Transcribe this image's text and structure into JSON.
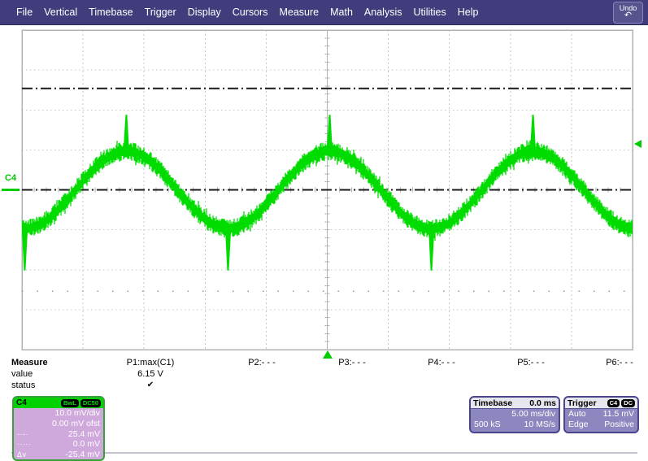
{
  "menu": {
    "items": [
      "File",
      "Vertical",
      "Timebase",
      "Trigger",
      "Display",
      "Cursors",
      "Measure",
      "Math",
      "Analysis",
      "Utilities",
      "Help"
    ],
    "undo": {
      "label": "Undo",
      "icon_glyph": "↶"
    }
  },
  "scope": {
    "channel_label": "C4",
    "divisions": {
      "horizontal": 10,
      "vertical": 8
    },
    "colors": {
      "trace": "#00dc00",
      "grid": "#c6c6c6",
      "graticule_border": "#b2b2b2",
      "cursor": "#1a1a1a",
      "ref_dots": "#9a9a9a"
    }
  },
  "chart_data": {
    "type": "line",
    "title": "Channel C4 trace",
    "x_unit": "ms",
    "y_unit": "mV",
    "timebase_ms_per_div": 5.0,
    "volts_per_div_mV": 10.0,
    "offset_mV": 0.0,
    "amplitude_mV": 9.7,
    "period_divisions": 3.33,
    "period_ms": 16.7,
    "peak_x_div": [
      1.71,
      5.04,
      8.37
    ],
    "noise_band_mV": 2.8,
    "peak_spike_mV": 18.8,
    "trough_spike_mV": -20.2,
    "color": "#00dc00",
    "cursors": [
      {
        "style": "dashdot",
        "mV": 25.4
      },
      {
        "style": "dashdot",
        "mV": 0.0
      },
      {
        "style": "sparse-dots",
        "mV": -25.4
      }
    ],
    "trigger": {
      "level_mV": 11.5,
      "position_div": 5.0
    },
    "description": "Noisy ~60 Hz sinusoidal ripple (~3.3 divisions per period) with narrow switching spikes at each crest and trough"
  },
  "measure": {
    "header_label": "Measure",
    "value_label": "value",
    "status_label": "status",
    "slots": [
      {
        "label": "P1:max(C1)",
        "value": "6.15 V",
        "status": "✔"
      },
      {
        "label": "P2:- - -",
        "value": "",
        "status": ""
      },
      {
        "label": "P3:- - -",
        "value": "",
        "status": ""
      },
      {
        "label": "P4:- - -",
        "value": "",
        "status": ""
      },
      {
        "label": "P5:- - -",
        "value": "",
        "status": ""
      },
      {
        "label": "P6:- - -",
        "value": "",
        "status": ""
      }
    ]
  },
  "channel_box": {
    "name": "C4",
    "badges": [
      "BwL",
      "DC50"
    ],
    "rows": [
      {
        "symbol": "",
        "text": "10.0 mV/div"
      },
      {
        "symbol": "",
        "text": "0.00 mV ofst"
      },
      {
        "symbol": "-·-·",
        "text": "25.4 mV"
      },
      {
        "symbol": "·····",
        "text": "0.0 mV"
      },
      {
        "symbol": "Δv",
        "text": "-25.4 mV"
      }
    ]
  },
  "timebase_box": {
    "title": "Timebase",
    "header_value": "0.0 ms",
    "rows": [
      {
        "left": "",
        "right": "5.00 ms/div"
      },
      {
        "left": "500 kS",
        "right": "10 MS/s"
      }
    ]
  },
  "trigger_box": {
    "title": "Trigger",
    "badges": [
      "C4",
      "DC"
    ],
    "rows": [
      {
        "left": "Auto",
        "right": "11.5 mV"
      },
      {
        "left": "Edge",
        "right": "Positive"
      }
    ]
  }
}
